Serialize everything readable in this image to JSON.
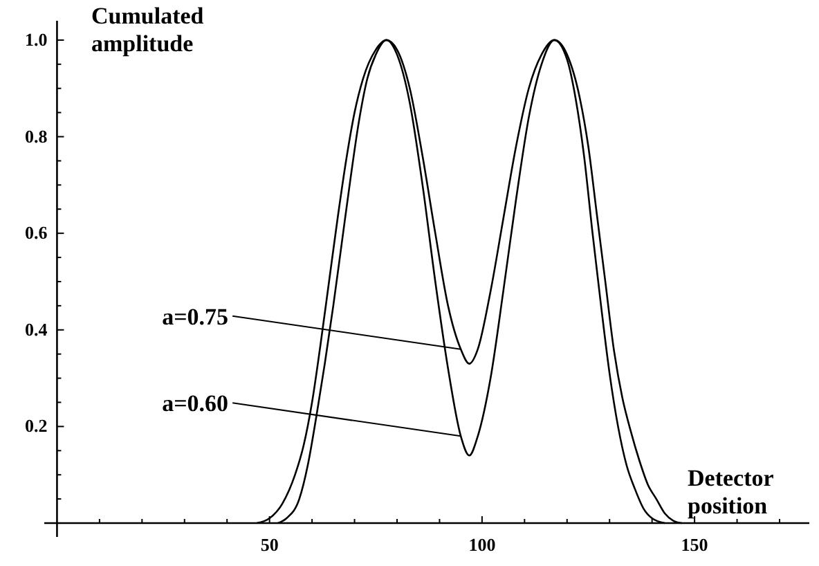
{
  "chart_data": {
    "type": "line",
    "xlabel": "Detector position",
    "ylabel": "Cumulated amplitude",
    "xlim": [
      -3,
      177
    ],
    "ylim": [
      0,
      1.04
    ],
    "xticks": [
      {
        "value": 10,
        "label": null
      },
      {
        "value": 20,
        "label": null
      },
      {
        "value": 30,
        "label": null
      },
      {
        "value": 40,
        "label": null
      },
      50,
      {
        "value": 60,
        "label": null
      },
      {
        "value": 70,
        "label": null
      },
      {
        "value": 80,
        "label": null
      },
      {
        "value": 90,
        "label": null
      },
      100,
      {
        "value": 110,
        "label": null
      },
      {
        "value": 120,
        "label": null
      },
      {
        "value": 130,
        "label": null
      },
      {
        "value": 140,
        "label": null
      },
      150,
      {
        "value": 160,
        "label": null
      },
      {
        "value": 170,
        "label": null
      }
    ],
    "yticks": [
      {
        "value": 0.05,
        "label": null
      },
      {
        "value": 0.1,
        "label": null
      },
      {
        "value": 0.15,
        "label": null
      },
      {
        "value": 0.2,
        "label": "0.2"
      },
      {
        "value": 0.25,
        "label": null
      },
      {
        "value": 0.3,
        "label": null
      },
      {
        "value": 0.35,
        "label": null
      },
      {
        "value": 0.4,
        "label": "0.4"
      },
      {
        "value": 0.45,
        "label": null
      },
      {
        "value": 0.5,
        "label": null
      },
      {
        "value": 0.55,
        "label": null
      },
      {
        "value": 0.6,
        "label": "0.6"
      },
      {
        "value": 0.65,
        "label": null
      },
      {
        "value": 0.7,
        "label": null
      },
      {
        "value": 0.75,
        "label": null
      },
      {
        "value": 0.8,
        "label": "0.8"
      },
      {
        "value": 0.85,
        "label": null
      },
      {
        "value": 0.9,
        "label": null
      },
      {
        "value": 0.95,
        "label": null
      },
      {
        "value": 1.0,
        "label": "1.0"
      }
    ],
    "grid": false,
    "marker": "none",
    "line_style": "solid",
    "series": [
      {
        "color": "#000000",
        "x": [
          47,
          50,
          53,
          56,
          58,
          60,
          62,
          64,
          66,
          68,
          70,
          72,
          75,
          77.5,
          80,
          83,
          86,
          89,
          92,
          95,
          97,
          99,
          102,
          105,
          108,
          111,
          114,
          117,
          120,
          123,
          125,
          127,
          129,
          131,
          133,
          135,
          137,
          139,
          141,
          143,
          145,
          147
        ],
        "values": [
          0,
          0.01,
          0.04,
          0.1,
          0.16,
          0.25,
          0.37,
          0.5,
          0.63,
          0.75,
          0.85,
          0.92,
          0.98,
          1.0,
          0.98,
          0.9,
          0.76,
          0.6,
          0.45,
          0.36,
          0.33,
          0.36,
          0.48,
          0.63,
          0.78,
          0.9,
          0.97,
          1.0,
          0.97,
          0.88,
          0.78,
          0.64,
          0.5,
          0.36,
          0.26,
          0.19,
          0.13,
          0.08,
          0.05,
          0.02,
          0.005,
          0
        ]
      },
      {
        "color": "#000000",
        "x": [
          52,
          54,
          57,
          59,
          61,
          63,
          65,
          67,
          69,
          71,
          73,
          75,
          77.5,
          80,
          83,
          86,
          89,
          92,
          95,
          97,
          99,
          102,
          105,
          108,
          111,
          114,
          117,
          120,
          122,
          124,
          126,
          128,
          130,
          132,
          134,
          136,
          138,
          140,
          143
        ],
        "values": [
          0,
          0.01,
          0.05,
          0.12,
          0.22,
          0.33,
          0.45,
          0.58,
          0.71,
          0.83,
          0.92,
          0.97,
          1.0,
          0.97,
          0.87,
          0.7,
          0.5,
          0.32,
          0.18,
          0.14,
          0.18,
          0.3,
          0.48,
          0.67,
          0.84,
          0.95,
          1.0,
          0.96,
          0.88,
          0.76,
          0.6,
          0.45,
          0.31,
          0.2,
          0.12,
          0.07,
          0.03,
          0.01,
          0
        ]
      }
    ],
    "annotations": [
      {
        "text": "a=0.75",
        "x": 95,
        "y": 0.36
      },
      {
        "text": "a=0.60",
        "x": 95,
        "y": 0.18
      }
    ]
  }
}
